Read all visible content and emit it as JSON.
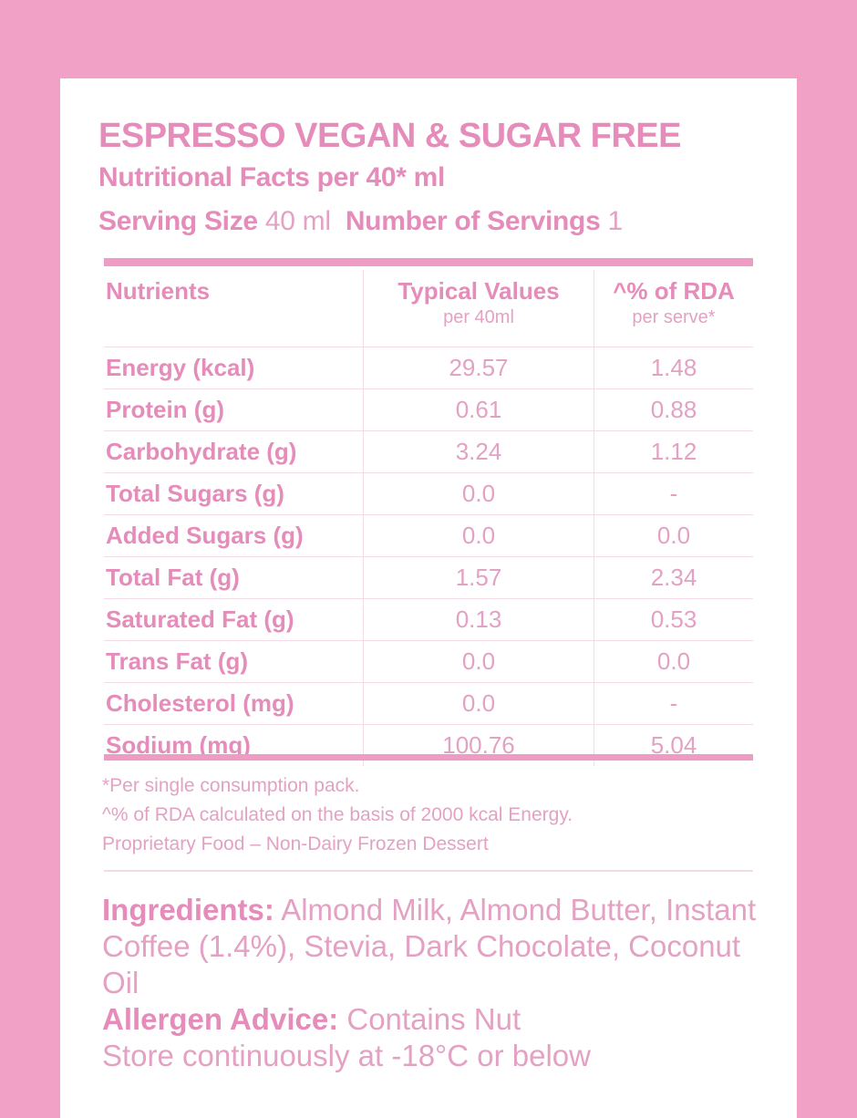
{
  "colors": {
    "background": "#f1a0c6",
    "accent": "#e58cba",
    "text_light": "#e3a2c3"
  },
  "title": "ESPRESSO VEGAN & SUGAR FREE",
  "subtitle": "Nutritional Facts per 40* ml",
  "serving": {
    "size_label": "Serving Size",
    "size_value": "40 ml",
    "count_label": "Number of Servings",
    "count_value": "1"
  },
  "table": {
    "headers": [
      {
        "label": "Nutrients",
        "sub": ""
      },
      {
        "label": "Typical Values",
        "sub": "per 40ml"
      },
      {
        "label": "^% of RDA",
        "sub": "per serve*"
      }
    ],
    "rows": [
      {
        "nutrient": "Energy (kcal)",
        "value": "29.57",
        "rda": "1.48"
      },
      {
        "nutrient": "Protein (g)",
        "value": "0.61",
        "rda": "0.88"
      },
      {
        "nutrient": "Carbohydrate (g)",
        "value": "3.24",
        "rda": "1.12"
      },
      {
        "nutrient": "Total Sugars (g)",
        "value": "0.0",
        "rda": "-"
      },
      {
        "nutrient": "Added Sugars (g)",
        "value": "0.0",
        "rda": "0.0"
      },
      {
        "nutrient": "Total Fat (g)",
        "value": "1.57",
        "rda": "2.34"
      },
      {
        "nutrient": "Saturated Fat (g)",
        "value": "0.13",
        "rda": "0.53"
      },
      {
        "nutrient": "Trans Fat (g)",
        "value": "0.0",
        "rda": "0.0"
      },
      {
        "nutrient": "Cholesterol (mg)",
        "value": "0.0",
        "rda": "-"
      },
      {
        "nutrient": "Sodium (mg)",
        "value": "100.76",
        "rda": "5.04"
      }
    ]
  },
  "footnotes": [
    "*Per single consumption pack.",
    "^% of RDA calculated on the basis of 2000 kcal Energy.",
    "Proprietary Food – Non-Dairy Frozen Dessert"
  ],
  "ingredients": {
    "label": "Ingredients:",
    "text": "Almond Milk, Almond Butter, Instant Coffee (1.4%), Stevia, Dark Chocolate, Coconut Oil"
  },
  "allergen": {
    "label": "Allergen Advice:",
    "text": "Contains Nut"
  },
  "storage": "Store continuously at -18°C or below"
}
